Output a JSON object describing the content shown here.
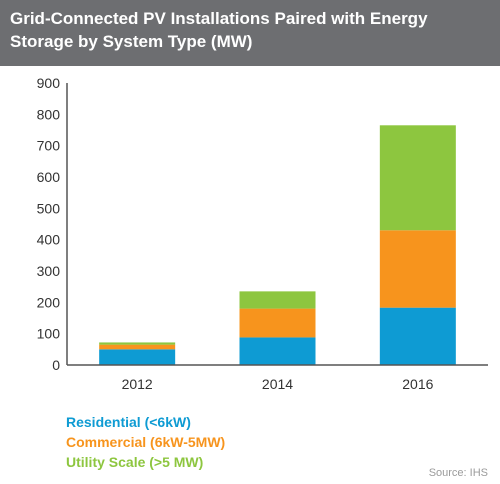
{
  "title": "Grid-Connected PV Installations Paired with Energy Storage by System Type (MW)",
  "source": "Source: IHS",
  "colors": {
    "header_bg": "#6d6e71",
    "residential": "#0e9bd3",
    "commercial": "#f7941d",
    "utility": "#8dc63f"
  },
  "chart_data": {
    "type": "bar",
    "stacked": true,
    "categories": [
      "2012",
      "2014",
      "2016"
    ],
    "series": [
      {
        "name": "Residential (<6kW)",
        "values": [
          50,
          88,
          183
        ]
      },
      {
        "name": "Commercial (6kW-5MW)",
        "values": [
          15,
          92,
          247
        ]
      },
      {
        "name": "Utility Scale (>5 MW)",
        "values": [
          7,
          55,
          335
        ]
      }
    ],
    "ylim": [
      0,
      900
    ],
    "yticks": [
      "0",
      "100",
      "200",
      "300",
      "400",
      "500",
      "600",
      "700",
      "800",
      "900"
    ],
    "grid": false,
    "legend_position": "bottom-left"
  }
}
